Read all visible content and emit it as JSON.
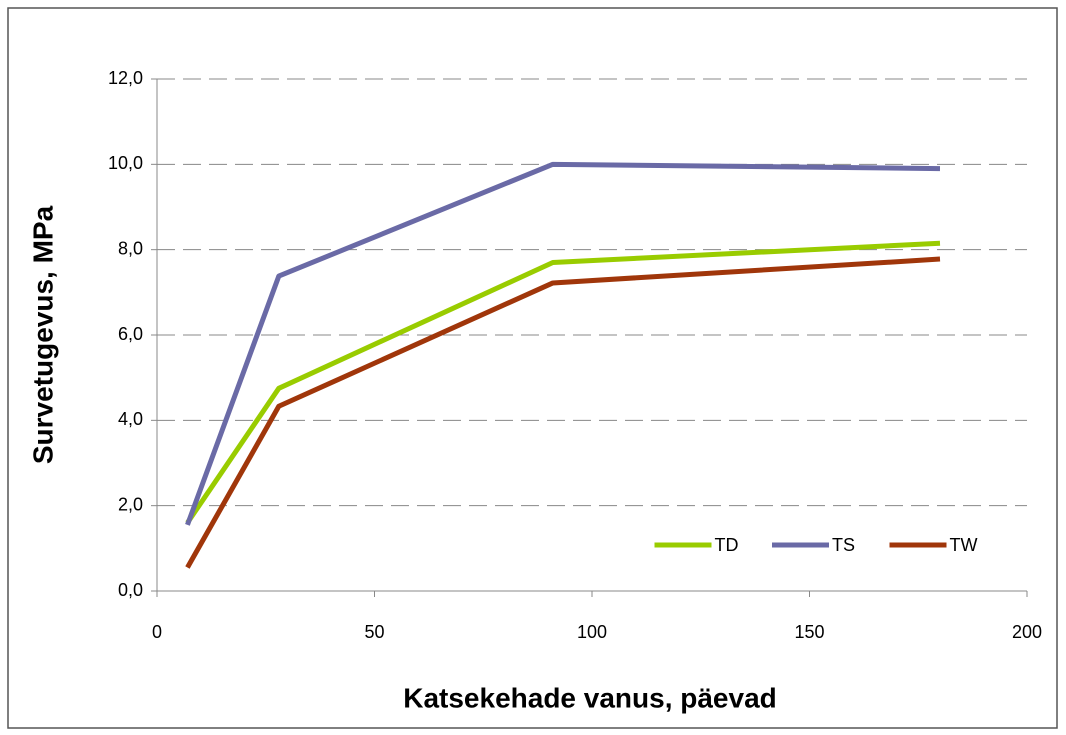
{
  "chart_data": {
    "type": "line",
    "xlabel": "Katsekehade vanus, päevad",
    "ylabel": "Survetugevus, MPa",
    "x": [
      7,
      28,
      91,
      180
    ],
    "series": [
      {
        "name": "TD",
        "color": "#99cc00",
        "values": [
          1.6,
          4.75,
          7.7,
          8.15
        ]
      },
      {
        "name": "TS",
        "color": "#6a6aa6",
        "values": [
          1.55,
          7.38,
          10.0,
          9.9
        ]
      },
      {
        "name": "TW",
        "color": "#a0360a",
        "values": [
          0.55,
          4.33,
          7.22,
          7.78
        ]
      }
    ],
    "xlim": [
      0,
      200
    ],
    "xticks": [
      0,
      50,
      100,
      150,
      200
    ],
    "ylim": [
      0,
      12
    ],
    "yticks": [
      {
        "value": 0,
        "label": "0,0"
      },
      {
        "value": 2,
        "label": "2,0"
      },
      {
        "value": 4,
        "label": "4,0"
      },
      {
        "value": 6,
        "label": "6,0"
      },
      {
        "value": 8,
        "label": "8,0"
      },
      {
        "value": 10,
        "label": "10,0"
      },
      {
        "value": 12,
        "label": "12,0"
      }
    ],
    "grid": true,
    "legend": "lower right"
  }
}
